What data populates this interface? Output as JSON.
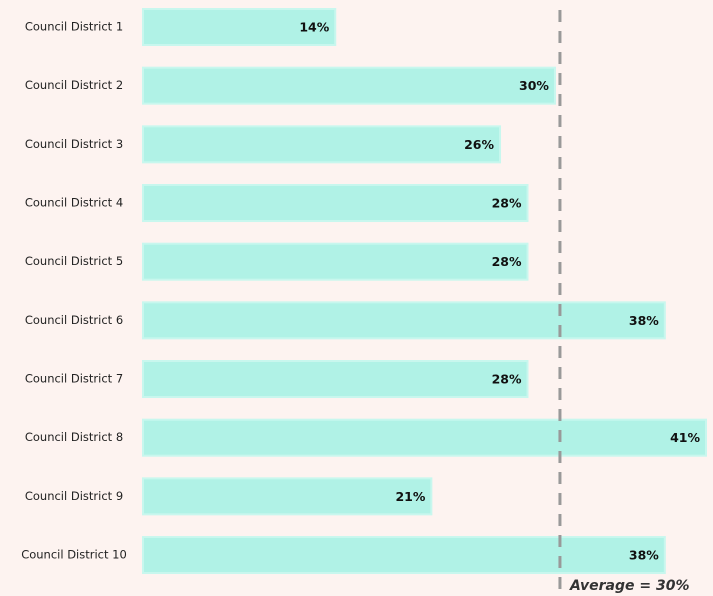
{
  "chart_data": {
    "type": "bar",
    "orientation": "horizontal",
    "categories": [
      "Council District 1",
      "Council District 2",
      "Council District 3",
      "Council District 4",
      "Council District 5",
      "Council District 6",
      "Council District 7",
      "Council District 8",
      "Council District 9",
      "Council District 10"
    ],
    "values": [
      14,
      30,
      26,
      28,
      28,
      38,
      28,
      41,
      21,
      38
    ],
    "value_labels": [
      "14%",
      "30%",
      "26%",
      "28%",
      "28%",
      "38%",
      "28%",
      "41%",
      "21%",
      "38%"
    ],
    "color": "#b0f2e6",
    "average": {
      "value": 30,
      "label": "Average = 30%"
    }
  }
}
